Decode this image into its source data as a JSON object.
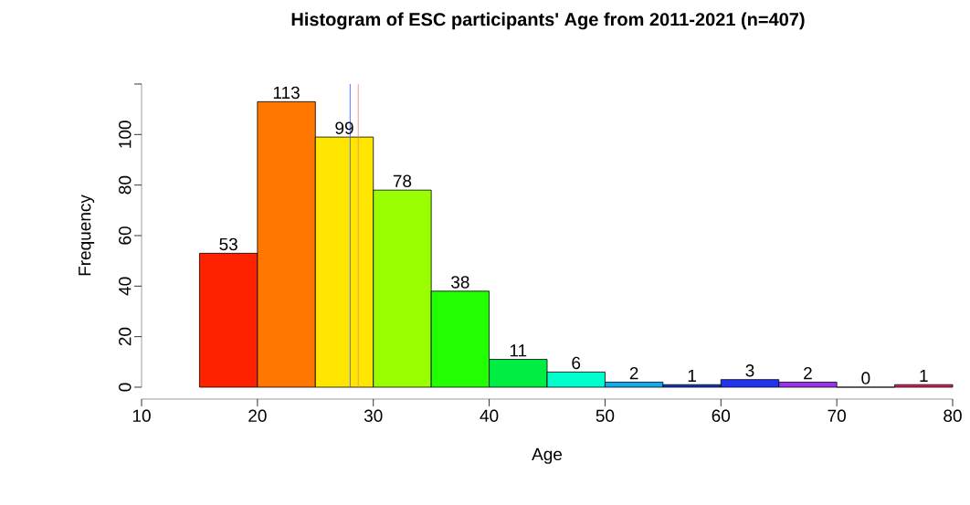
{
  "chart_data": {
    "type": "histogram",
    "title": "Histogram of ESC participants' Age from 2011-2021 (n=407)",
    "xlabel": "Age",
    "ylabel": "Frequency",
    "bins": [
      15,
      20,
      25,
      30,
      35,
      40,
      45,
      50,
      55,
      60,
      65,
      70,
      75,
      80
    ],
    "values": [
      53,
      113,
      99,
      78,
      38,
      11,
      6,
      2,
      1,
      3,
      2,
      0,
      1
    ],
    "colors": [
      "#ff2200",
      "#ff7700",
      "#ffe600",
      "#99ff00",
      "#22ff00",
      "#00ee44",
      "#00ffcc",
      "#11aaee",
      "#1133cc",
      "#2233ee",
      "#9933ee",
      "#ffffff",
      "#dd2255"
    ],
    "data_labels": true,
    "xlim": [
      10,
      80
    ],
    "xticks": [
      10,
      20,
      30,
      40,
      50,
      60,
      70,
      80
    ],
    "ylim": [
      0,
      120
    ],
    "yticks": [
      0,
      20,
      40,
      60,
      80,
      100,
      {
        "value": 120,
        "label": null
      }
    ],
    "ref_lines": [
      {
        "axis": "x",
        "value": 28.0,
        "color": "#3355ff"
      },
      {
        "axis": "x",
        "value": 28.7,
        "color": "#f08080"
      }
    ],
    "grid": false
  }
}
